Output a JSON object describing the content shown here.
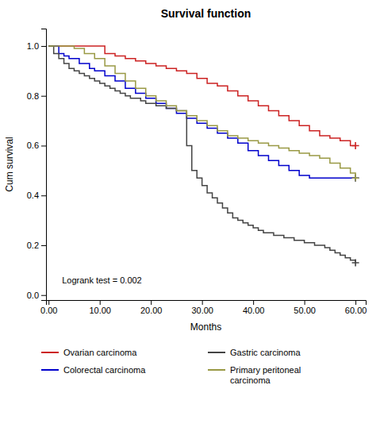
{
  "chart_data": {
    "type": "step",
    "title": "Survival function",
    "x_label": "Months",
    "y_label": "Cum survival",
    "annotation": "Logrank test = 0.002",
    "xlim": [
      -0.5,
      62
    ],
    "ylim": [
      -0.02,
      1.07
    ],
    "xticks": [
      {
        "value": 0,
        "label": "0.00"
      },
      {
        "value": 10,
        "label": "10.00"
      },
      {
        "value": 20,
        "label": "20.00"
      },
      {
        "value": 30,
        "label": "30.00"
      },
      {
        "value": 40,
        "label": "40.00"
      },
      {
        "value": 50,
        "label": "50.00"
      },
      {
        "value": 60,
        "label": "60.00"
      }
    ],
    "yticks": [
      {
        "value": 0,
        "label": "0.0"
      },
      0.2,
      0.4,
      0.6,
      0.8,
      {
        "value": 1,
        "label": "1.0"
      }
    ],
    "grid": false,
    "legend": "bottom",
    "series": [
      {
        "name": "Ovarian carcinoma",
        "color": "#cc2222",
        "marker": "plus",
        "x": [
          0,
          1,
          3,
          5,
          8,
          10,
          11,
          13,
          15,
          17,
          19,
          21,
          23,
          25,
          27,
          29,
          31,
          33,
          35,
          37,
          39,
          41,
          43,
          45,
          47,
          49,
          51,
          53,
          55,
          57,
          59,
          60
        ],
        "values": [
          1.0,
          1.0,
          1.0,
          1.0,
          1.0,
          1.0,
          0.97,
          0.96,
          0.95,
          0.94,
          0.93,
          0.92,
          0.91,
          0.9,
          0.89,
          0.87,
          0.85,
          0.84,
          0.82,
          0.8,
          0.78,
          0.76,
          0.74,
          0.72,
          0.7,
          0.68,
          0.66,
          0.64,
          0.63,
          0.62,
          0.6,
          0.6
        ],
        "censor_x": 60,
        "censor_y": 0.6
      },
      {
        "name": "Colorectal carcinoma",
        "color": "#0000cc",
        "marker": "plus",
        "x": [
          0,
          2,
          3,
          4,
          6,
          8,
          9,
          11,
          13,
          15,
          17,
          19,
          21,
          23,
          25,
          27,
          29,
          31,
          33,
          35,
          37,
          39,
          41,
          43,
          45,
          47,
          49,
          51,
          53,
          60
        ],
        "values": [
          1.0,
          0.97,
          0.96,
          0.95,
          0.93,
          0.91,
          0.9,
          0.88,
          0.86,
          0.83,
          0.81,
          0.79,
          0.77,
          0.75,
          0.73,
          0.71,
          0.69,
          0.67,
          0.65,
          0.63,
          0.61,
          0.58,
          0.56,
          0.54,
          0.52,
          0.5,
          0.48,
          0.47,
          0.47,
          0.47
        ],
        "censor_x": 60,
        "censor_y": 0.47
      },
      {
        "name": "Gastric carcinoma",
        "color": "#444444",
        "marker": "plus",
        "x": [
          0,
          1,
          2,
          3,
          4,
          5,
          6,
          7,
          8,
          9,
          10,
          11,
          12,
          13,
          14,
          15,
          16,
          17,
          18,
          19,
          20,
          21,
          22,
          23,
          24,
          25,
          26,
          27,
          28,
          29,
          30,
          31,
          32,
          33,
          34,
          35,
          36,
          37,
          38,
          39,
          40,
          41,
          42,
          43,
          44,
          45,
          46,
          47,
          48,
          49,
          50,
          51,
          52,
          53,
          54,
          55,
          56,
          57,
          58,
          59,
          60
        ],
        "values": [
          1.0,
          0.97,
          0.95,
          0.93,
          0.91,
          0.9,
          0.89,
          0.88,
          0.87,
          0.86,
          0.85,
          0.84,
          0.83,
          0.82,
          0.81,
          0.8,
          0.79,
          0.79,
          0.78,
          0.77,
          0.77,
          0.76,
          0.76,
          0.75,
          0.75,
          0.74,
          0.74,
          0.6,
          0.5,
          0.47,
          0.44,
          0.41,
          0.39,
          0.37,
          0.35,
          0.33,
          0.31,
          0.3,
          0.29,
          0.28,
          0.27,
          0.26,
          0.25,
          0.25,
          0.24,
          0.24,
          0.23,
          0.23,
          0.22,
          0.22,
          0.21,
          0.21,
          0.2,
          0.2,
          0.19,
          0.18,
          0.17,
          0.16,
          0.15,
          0.14,
          0.13
        ],
        "censor_x": 60,
        "censor_y": 0.13
      },
      {
        "name": "Primary peritoneal\ncarcinoma",
        "color": "#999944",
        "marker": "plus",
        "x": [
          0,
          1,
          2,
          3,
          4,
          5,
          7,
          9,
          11,
          13,
          15,
          17,
          19,
          21,
          23,
          25,
          27,
          29,
          31,
          33,
          35,
          37,
          39,
          41,
          43,
          45,
          47,
          49,
          51,
          53,
          55,
          57,
          59,
          60
        ],
        "values": [
          1.0,
          1.0,
          1.0,
          1.0,
          1.0,
          0.99,
          0.97,
          0.95,
          0.92,
          0.89,
          0.86,
          0.83,
          0.8,
          0.78,
          0.76,
          0.74,
          0.72,
          0.7,
          0.68,
          0.66,
          0.64,
          0.63,
          0.62,
          0.61,
          0.6,
          0.59,
          0.58,
          0.57,
          0.56,
          0.55,
          0.53,
          0.51,
          0.49,
          0.47
        ],
        "censor_x": 60,
        "censor_y": 0.47
      }
    ]
  }
}
